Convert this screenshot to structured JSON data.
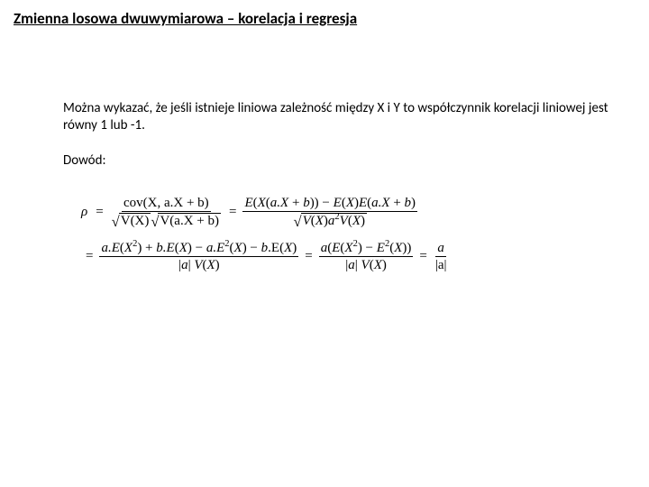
{
  "title": "Zmienna losowa dwuwymiarowa – korelacja i regresja",
  "para1": "Można wykazać, że jeśli istnieje liniowa zależność między X i Y to współczynnik korelacji liniowej jest równy 1 lub -1.",
  "proof_label": "Dowód:",
  "math": {
    "rho": "ρ",
    "eq": "=",
    "line1_cov": "cov(X, a.X + b)",
    "line1_den1_vx": "V(X)",
    "line1_den1_vaxb": "V(a.X + b)",
    "line1_num2": "E(X(a.X + b)) − E(X)E(a.X + b)",
    "line1_den2_vx": "V(X)",
    "line1_den2_a2vx": "a²V(X)",
    "line2_num1": "a.E(X²) + b.E(X) − a.E²(X) − b.E(X)",
    "line2_den1": "|a| V(X)",
    "line2_num2": "a(E(X²) − E²(X))",
    "line2_den2": "|a| V(X)",
    "line2_num3": "a",
    "line2_den3": "|a|"
  },
  "style": {
    "background": "#ffffff",
    "text_color": "#000000",
    "title_fontsize": 17,
    "body_fontsize": 15,
    "math_font": "Times New Roman"
  }
}
